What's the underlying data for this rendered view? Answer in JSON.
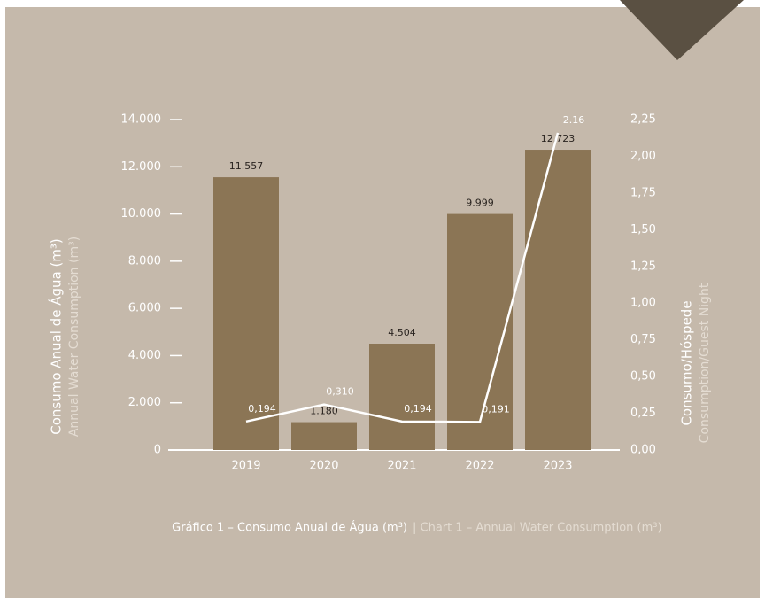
{
  "chart_data": {
    "type": "bar",
    "categories": [
      "2019",
      "2020",
      "2021",
      "2022",
      "2023"
    ],
    "series": [
      {
        "type": "bar",
        "color": "#8b7555",
        "values": [
          11557,
          1180,
          4504,
          9999,
          12723
        ],
        "value_labels": [
          "11.557",
          "1.180",
          "4.504",
          "9.999",
          "12.723"
        ]
      },
      {
        "type": "line",
        "axis": "y2",
        "color": "#ffffff",
        "values": [
          0.194,
          0.31,
          0.194,
          0.191,
          2.16
        ],
        "value_labels": [
          "0,194",
          "0,310",
          "0,194",
          "0,191",
          "2.16"
        ]
      }
    ],
    "ylim": [
      0,
      14000
    ],
    "yticks": [
      0,
      {
        "value": 2000,
        "label": "2.000"
      },
      {
        "value": 4000,
        "label": "4.000"
      },
      {
        "value": 6000,
        "label": "6.000"
      },
      {
        "value": 8000,
        "label": "8.000"
      },
      {
        "value": 10000,
        "label": "10.000"
      },
      {
        "value": 12000,
        "label": "12.000"
      },
      {
        "value": 14000,
        "label": "14.000"
      }
    ],
    "y2lim": [
      0,
      2.25
    ],
    "y2ticks": [
      {
        "value": 0,
        "label": "0,00"
      },
      {
        "value": 0.25,
        "label": "0,25"
      },
      {
        "value": 0.5,
        "label": "0,50"
      },
      {
        "value": 0.75,
        "label": "0,75"
      },
      {
        "value": 1,
        "label": "1,00"
      },
      {
        "value": 1.25,
        "label": "1,25"
      },
      {
        "value": 1.5,
        "label": "1,50"
      },
      {
        "value": 1.75,
        "label": "1,75"
      },
      {
        "value": 2,
        "label": "2,00"
      },
      {
        "value": 2.25,
        "label": "2,25"
      }
    ],
    "ylabel": {
      "pt": "Consumo Anual de Água (m³)",
      "en": "Annual Water Consumption (m³)"
    },
    "y2label": {
      "pt": "Consumo/Hóspede",
      "en": "Consumption/Guest Night"
    },
    "caption": {
      "pt": "Gráfico 1 – Consumo Anual de Água (m³)",
      "en": "| Chart 1 – Annual Water Consumption (m³)"
    }
  }
}
